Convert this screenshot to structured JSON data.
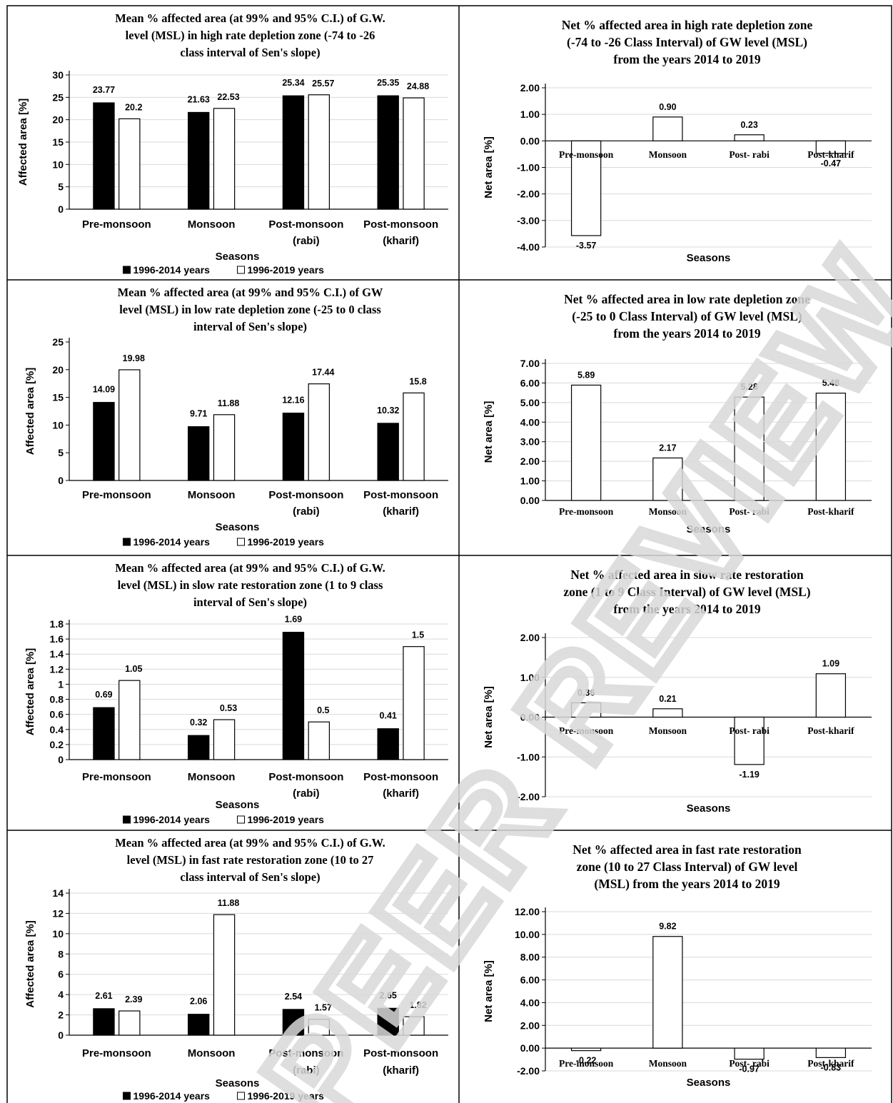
{
  "colors": {
    "dark_bar": "#000000",
    "light_bar": "#ffffff",
    "grid": "#d9d9d9",
    "border": "#000000",
    "watermark": "#d9d9d9"
  },
  "watermark_text": "PEER REVIEW",
  "chart_data": [
    {
      "type": "bar",
      "title": [
        "Mean % affected area (at 99% and 95% C.I.) of G.W.",
        "level (MSL) in high rate depletion zone (-74 to -26",
        "class interval of Sen's slope)"
      ],
      "xlabel": "Seasons",
      "ylabel": "Affected area [%]",
      "categories": [
        [
          "Pre-monsoon"
        ],
        [
          "Monsoon"
        ],
        [
          "Post-monsoon",
          "(rabi)"
        ],
        [
          "Post-monsoon",
          "(kharif)"
        ]
      ],
      "ylim": [
        0,
        30
      ],
      "yticks": [
        0,
        5,
        10,
        15,
        20,
        25,
        30
      ],
      "ytick_decimals": 0,
      "series": [
        {
          "name": "1996-2014 years",
          "color": "#000000",
          "values": [
            23.77,
            21.63,
            25.34,
            25.35
          ],
          "labels": [
            "23.77",
            "21.63",
            "25.34",
            "25.35"
          ]
        },
        {
          "name": "1996-2019 years",
          "color": "#ffffff",
          "values": [
            20.2,
            22.53,
            25.57,
            24.88
          ],
          "labels": [
            "20.2",
            "22.53",
            "25.57",
            "24.88"
          ]
        }
      ],
      "legend": "bottom",
      "grid": true
    },
    {
      "type": "bar",
      "title": [
        "Net % affected area in high rate depletion zone",
        "(-74 to -26 Class Interval) of GW level (MSL)",
        "from the years 2014 to 2019"
      ],
      "xlabel": "Seasons",
      "ylabel": "Net area [%]",
      "categories": [
        [
          "Pre-monsoon"
        ],
        [
          "Monsoon"
        ],
        [
          "Post- rabi"
        ],
        [
          "Post-kharif"
        ]
      ],
      "ylim": [
        -4,
        2
      ],
      "yticks": [
        -4,
        -3,
        -2,
        -1,
        0,
        1,
        2
      ],
      "ytick_decimals": 2,
      "series": [
        {
          "color": "#ffffff",
          "values": [
            -3.57,
            0.9,
            0.23,
            -0.47
          ],
          "labels": [
            "-3.57",
            "0.90",
            "0.23",
            "-0.47"
          ]
        }
      ],
      "legend": "none",
      "grid": true
    },
    {
      "type": "bar",
      "title": [
        "Mean % affected area (at 99% and 95% C.I.) of GW",
        "level (MSL) in low rate depletion zone (-25 to 0 class",
        "interval of Sen's slope)"
      ],
      "xlabel": "Seasons",
      "ylabel": "Affected area [%]",
      "categories": [
        [
          "Pre-monsoon"
        ],
        [
          "Monsoon"
        ],
        [
          "Post-monsoon",
          "(rabi)"
        ],
        [
          "Post-monsoon",
          "(kharif)"
        ]
      ],
      "ylim": [
        0,
        25
      ],
      "yticks": [
        0,
        5,
        10,
        15,
        20,
        25
      ],
      "ytick_decimals": 0,
      "series": [
        {
          "name": "1996-2014 years",
          "color": "#000000",
          "values": [
            14.09,
            9.71,
            12.16,
            10.32
          ],
          "labels": [
            "14.09",
            "9.71",
            "12.16",
            "10.32"
          ]
        },
        {
          "name": "1996-2019 years",
          "color": "#ffffff",
          "values": [
            19.98,
            11.88,
            17.44,
            15.8
          ],
          "labels": [
            "19.98",
            "11.88",
            "17.44",
            "15.8"
          ]
        }
      ],
      "legend": "bottom",
      "grid": false
    },
    {
      "type": "bar",
      "title": [
        "Net % affected area in low rate depletion zone",
        "(-25 to 0 Class Interval) of GW level (MSL)",
        "from the years 2014 to 2019"
      ],
      "xlabel": "Seasons",
      "ylabel": "Net area [%]",
      "categories": [
        [
          "Pre-monsoon"
        ],
        [
          "Monsoon"
        ],
        [
          "Post- rabi"
        ],
        [
          "Post-kharif"
        ]
      ],
      "ylim": [
        0,
        7
      ],
      "yticks": [
        0,
        1,
        2,
        3,
        4,
        5,
        6,
        7
      ],
      "ytick_decimals": 2,
      "series": [
        {
          "color": "#ffffff",
          "values": [
            5.89,
            2.17,
            5.28,
            5.48
          ],
          "labels": [
            "5.89",
            "2.17",
            "5.28",
            "5.48"
          ]
        }
      ],
      "legend": "none",
      "grid": true
    },
    {
      "type": "bar",
      "title": [
        "Mean % affected area (at 99% and 95% C.I.) of G.W.",
        "level (MSL) in slow rate restoration zone (1 to 9 class",
        "interval of Sen's slope)"
      ],
      "xlabel": "Seasons",
      "ylabel": "Affected area [%]",
      "categories": [
        [
          "Pre-monsoon"
        ],
        [
          "Monsoon"
        ],
        [
          "Post-monsoon",
          "(rabi)"
        ],
        [
          "Post-monsoon",
          "(kharif)"
        ]
      ],
      "ylim": [
        0,
        1.8
      ],
      "yticks": [
        "0",
        "0.2",
        "0.4",
        "0.6",
        "0.8",
        "1",
        "1.2",
        "1.4",
        "1.6",
        "1.8"
      ],
      "series": [
        {
          "name": "1996-2014 years",
          "color": "#000000",
          "values": [
            0.69,
            0.32,
            1.69,
            0.41
          ],
          "labels": [
            "0.69",
            "0.32",
            "1.69",
            "0.41"
          ]
        },
        {
          "name": "1996-2019 years",
          "color": "#ffffff",
          "values": [
            1.05,
            0.53,
            0.5,
            1.5
          ],
          "labels": [
            "1.05",
            "0.53",
            "0.5",
            "1.5"
          ]
        }
      ],
      "legend": "bottom",
      "grid": true
    },
    {
      "type": "bar",
      "title": [
        "Net % affected area in slow rate restoration",
        "zone (1 to 9 Class Interval) of GW level (MSL)",
        "from the years 2014 to 2019"
      ],
      "xlabel": "Seasons",
      "ylabel": "Net area [%]",
      "categories": [
        [
          "Pre-monsoon"
        ],
        [
          "Monsoon"
        ],
        [
          "Post- rabi"
        ],
        [
          "Post-kharif"
        ]
      ],
      "ylim": [
        -2,
        2
      ],
      "yticks": [
        -2,
        -1,
        0,
        1,
        2
      ],
      "ytick_decimals": 2,
      "series": [
        {
          "color": "#ffffff",
          "values": [
            0.36,
            0.21,
            -1.19,
            1.09
          ],
          "labels": [
            "0.36",
            "0.21",
            "-1.19",
            "1.09"
          ]
        }
      ],
      "legend": "none",
      "grid": true
    },
    {
      "type": "bar",
      "title": [
        "Mean % affected area (at 99% and 95% C.I.) of G.W.",
        "level (MSL) in fast rate restoration zone (10 to 27",
        "class interval of Sen's slope)"
      ],
      "xlabel": "Seasons",
      "ylabel": "Affected area [%]",
      "categories": [
        [
          "Pre-monsoon"
        ],
        [
          "Monsoon"
        ],
        [
          "Post-monsoon",
          "(rabi)"
        ],
        [
          "Post-monsoon",
          "(kharif)"
        ]
      ],
      "ylim": [
        0,
        14
      ],
      "yticks": [
        0,
        2,
        4,
        6,
        8,
        10,
        12,
        14
      ],
      "ytick_decimals": 0,
      "series": [
        {
          "name": "1996-2014 years",
          "color": "#000000",
          "values": [
            2.61,
            2.06,
            2.54,
            2.65
          ],
          "labels": [
            "2.61",
            "2.06",
            "2.54",
            "2.65"
          ]
        },
        {
          "name": "1996-2019 years",
          "color": "#ffffff",
          "values": [
            2.39,
            11.88,
            1.57,
            1.82
          ],
          "labels": [
            "2.39",
            "11.88",
            "1.57",
            "1.82"
          ]
        }
      ],
      "legend": "bottom",
      "grid": true
    },
    {
      "type": "bar",
      "title": [
        "Net % affected area in fast rate restoration",
        "zone (10 to 27 Class Interval) of GW level",
        "(MSL) from the years 2014 to 2019"
      ],
      "xlabel": "Seasons",
      "ylabel": "Net area [%]",
      "categories": [
        [
          "Pre-monsoon"
        ],
        [
          "Monsoon"
        ],
        [
          "Post- rabi"
        ],
        [
          "Post-kharif"
        ]
      ],
      "ylim": [
        -2,
        12
      ],
      "yticks": [
        -2,
        0,
        2,
        4,
        6,
        8,
        10,
        12
      ],
      "ytick_decimals": 2,
      "series": [
        {
          "color": "#ffffff",
          "values": [
            -0.22,
            9.82,
            -0.97,
            -0.83
          ],
          "labels": [
            "-0.22",
            "9.82",
            "-0.97",
            "-0.83"
          ]
        }
      ],
      "legend": "none",
      "grid": true
    }
  ]
}
